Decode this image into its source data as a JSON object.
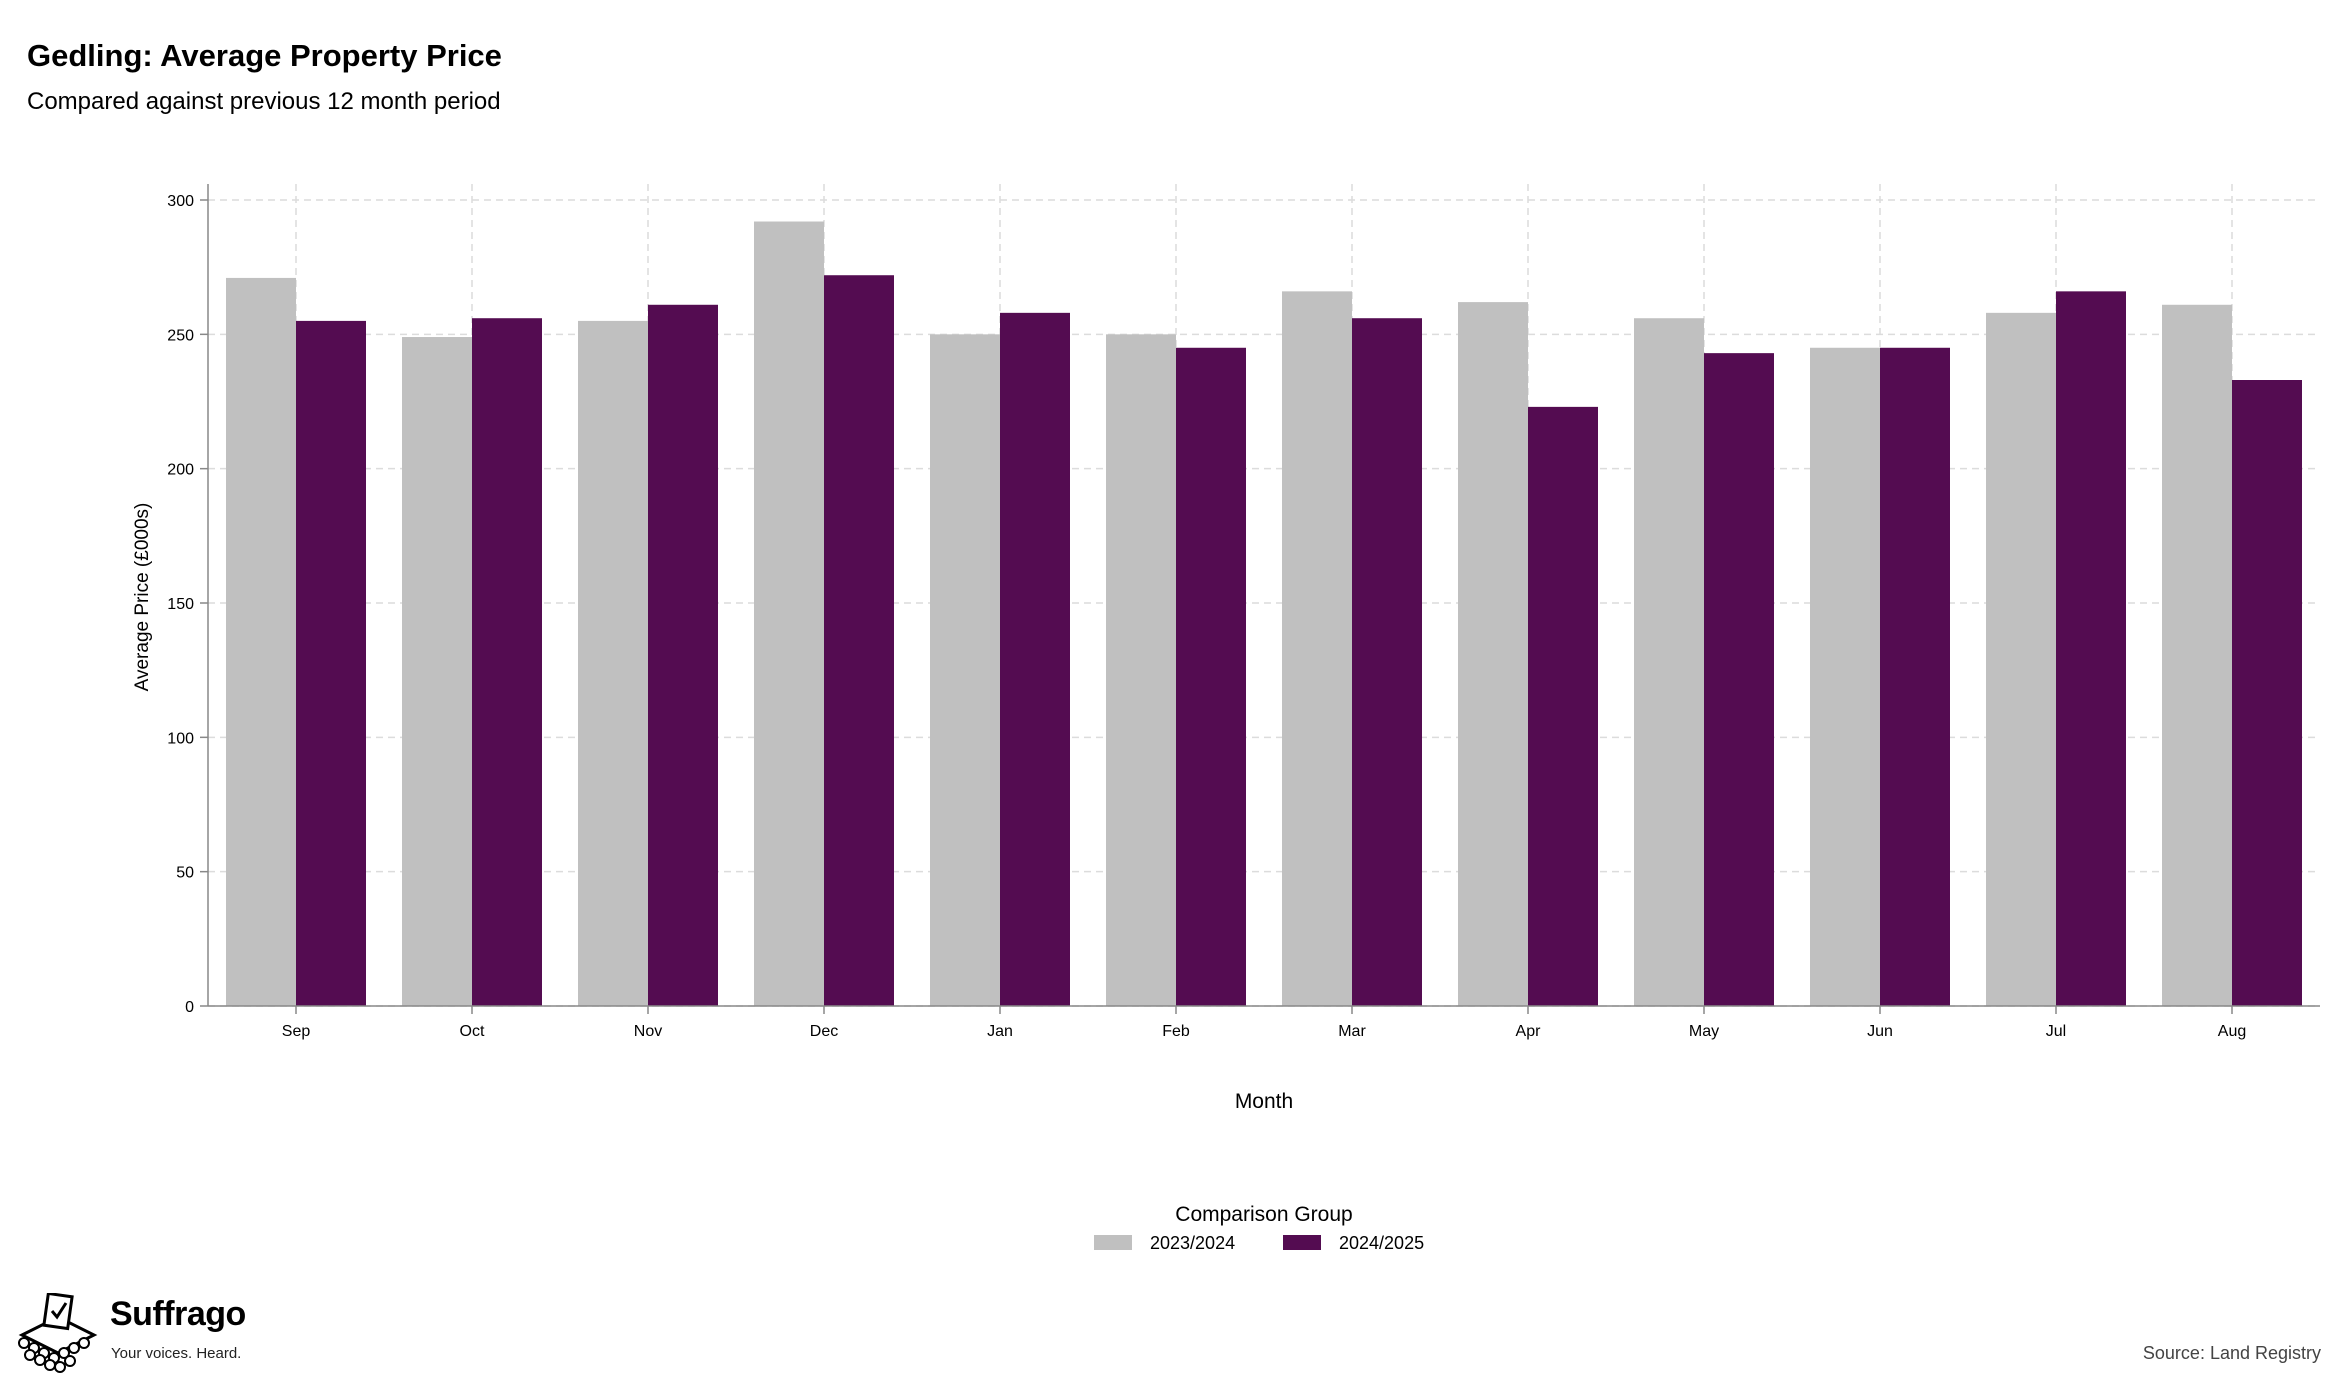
{
  "header": {
    "title": "Gedling: Average Property Price",
    "subtitle": "Compared against previous 12 month period"
  },
  "footer": {
    "brand": "Suffrago",
    "tagline": "Your voices. Heard.",
    "source": "Source: Land Registry"
  },
  "colors": {
    "series_2023_2024": "#c0c0c0",
    "series_2024_2025": "#540c51",
    "grid": "#dcdcdc",
    "axis": "#888888"
  },
  "chart_data": {
    "type": "bar",
    "xlabel": "Month",
    "ylabel": "Average Price (£000s)",
    "ylim": [
      0,
      300
    ],
    "yticks": [
      0,
      50,
      100,
      150,
      200,
      250,
      300
    ],
    "grid": true,
    "legend_title": "Comparison Group",
    "legend_position": "bottom-center",
    "categories": [
      "Sep",
      "Oct",
      "Nov",
      "Dec",
      "Jan",
      "Feb",
      "Mar",
      "Apr",
      "May",
      "Jun",
      "Jul",
      "Aug"
    ],
    "series": [
      {
        "name": "2023/2024",
        "color": "#c0c0c0",
        "values": [
          271,
          249,
          255,
          292,
          250,
          250,
          266,
          262,
          256,
          245,
          258,
          261
        ]
      },
      {
        "name": "2024/2025",
        "color": "#540c51",
        "values": [
          255,
          256,
          261,
          272,
          258,
          245,
          256,
          223,
          243,
          245,
          266,
          233
        ]
      }
    ]
  }
}
